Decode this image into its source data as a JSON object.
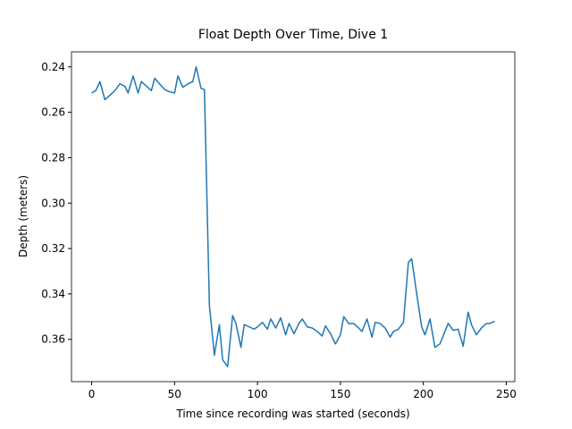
{
  "chart_data": {
    "type": "line",
    "title": "Float Depth Over Time, Dive 1",
    "xlabel": "Time since recording was started (seconds)",
    "ylabel": "Depth (meters)",
    "x": [
      0,
      2.5,
      5,
      8,
      11,
      14,
      17,
      20,
      22,
      25,
      28,
      30,
      33,
      36,
      38,
      41,
      44,
      47,
      50,
      52,
      55,
      58,
      61,
      63,
      66,
      68,
      71,
      74,
      77,
      79,
      82,
      85,
      87,
      90,
      92,
      95,
      98,
      100,
      103,
      106,
      108,
      111,
      114,
      117,
      119,
      122,
      125,
      127,
      130,
      133,
      136,
      139,
      141,
      144,
      147,
      150,
      152,
      155,
      158,
      161,
      163,
      166,
      169,
      171,
      174,
      177,
      180,
      182,
      185,
      188,
      191,
      193,
      196,
      199,
      201,
      204,
      207,
      210,
      213,
      215,
      218,
      221,
      224,
      227,
      229,
      232,
      235,
      238,
      240,
      243
    ],
    "series": [
      {
        "color": "#1f77b4",
        "values": [
          0.2515,
          0.2505,
          0.2465,
          0.2545,
          0.2525,
          0.2505,
          0.2475,
          0.2485,
          0.2515,
          0.244,
          0.2515,
          0.2465,
          0.2485,
          0.2505,
          0.245,
          0.2475,
          0.25,
          0.251,
          0.2515,
          0.244,
          0.249,
          0.2475,
          0.2465,
          0.24,
          0.2495,
          0.25,
          0.345,
          0.367,
          0.3535,
          0.369,
          0.372,
          0.3495,
          0.353,
          0.3635,
          0.3535,
          0.3545,
          0.3555,
          0.3545,
          0.3525,
          0.3555,
          0.351,
          0.355,
          0.3505,
          0.358,
          0.353,
          0.3575,
          0.353,
          0.351,
          0.3545,
          0.355,
          0.3565,
          0.3585,
          0.354,
          0.3575,
          0.362,
          0.358,
          0.35,
          0.353,
          0.353,
          0.355,
          0.3565,
          0.351,
          0.359,
          0.3525,
          0.353,
          0.355,
          0.359,
          0.3565,
          0.3555,
          0.3525,
          0.326,
          0.3245,
          0.34,
          0.3545,
          0.358,
          0.351,
          0.3635,
          0.362,
          0.3565,
          0.353,
          0.356,
          0.3555,
          0.363,
          0.348,
          0.3535,
          0.358,
          0.355,
          0.353,
          0.353,
          0.352
        ]
      }
    ],
    "xlim": [
      -12.15,
      255.15
    ],
    "xticks": [
      0,
      50,
      100,
      150,
      200,
      250
    ],
    "ylim": [
      0.3786,
      0.2334
    ],
    "invert_y": true,
    "yticks": [
      {
        "value": 0.24,
        "label": "0.24"
      },
      {
        "value": 0.26,
        "label": "0.26"
      },
      {
        "value": 0.28,
        "label": "0.28"
      },
      {
        "value": 0.3,
        "label": "0.30"
      },
      {
        "value": 0.32,
        "label": "0.32"
      },
      {
        "value": 0.34,
        "label": "0.34"
      },
      {
        "value": 0.36,
        "label": "0.36"
      }
    ],
    "grid": false
  }
}
